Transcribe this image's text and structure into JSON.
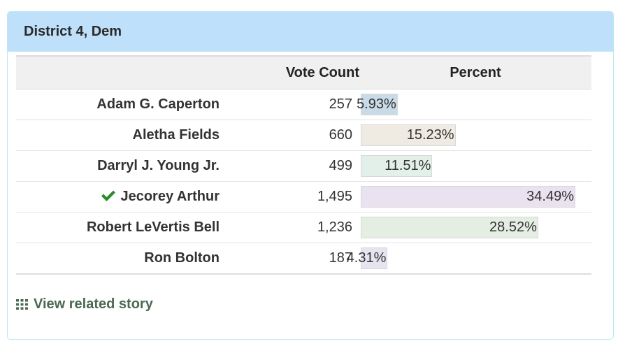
{
  "panel": {
    "title": "District 4, Dem"
  },
  "table": {
    "headers": {
      "name": "",
      "votes": "Vote Count",
      "percent": "Percent"
    },
    "rows": [
      {
        "name": "Adam G. Caperton",
        "votes": "257",
        "percent": "5.93%",
        "pct_value": 5.93,
        "color": "#c9dbe6",
        "winner": false
      },
      {
        "name": "Aletha Fields",
        "votes": "660",
        "percent": "15.23%",
        "pct_value": 15.23,
        "color": "#efebe3",
        "winner": false
      },
      {
        "name": "Darryl J. Young Jr.",
        "votes": "499",
        "percent": "11.51%",
        "pct_value": 11.51,
        "color": "#e3f0ea",
        "winner": false
      },
      {
        "name": "Jecorey Arthur",
        "votes": "1,495",
        "percent": "34.49%",
        "pct_value": 34.49,
        "color": "#eae2f0",
        "winner": true
      },
      {
        "name": "Robert LeVertis Bell",
        "votes": "1,236",
        "percent": "28.52%",
        "pct_value": 28.52,
        "color": "#e5eee3",
        "winner": false
      },
      {
        "name": "Ron Bolton",
        "votes": "187",
        "percent": "4.31%",
        "pct_value": 4.31,
        "color": "#e6e4f0",
        "winner": false
      }
    ]
  },
  "related": {
    "label": "View related story",
    "icon": "grid-icon"
  },
  "colors": {
    "heading_bg": "#bfe0fa",
    "panel_border": "#bce8f1",
    "winner_check": "#2e8b2e",
    "related_link": "#4a6a52"
  }
}
